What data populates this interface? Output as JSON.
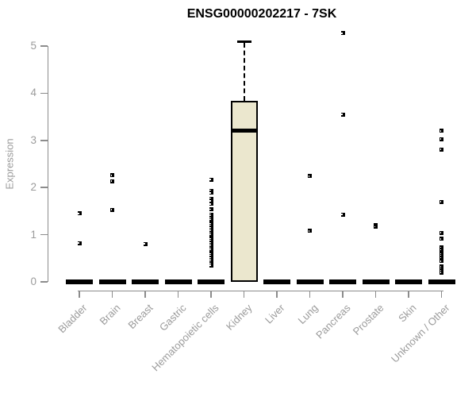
{
  "chart_data": {
    "type": "boxplot",
    "title": "ENSG00000202217 - 7SK",
    "ylabel": "Expression",
    "xlabel": "",
    "ylim": [
      0,
      5
    ],
    "yticks": [
      0,
      1,
      2,
      3,
      4,
      5
    ],
    "grid": false,
    "legend": "none",
    "axis_color": "#8c8c8c",
    "tick_label_color": "#9b9b9b",
    "point_color": "#000000",
    "box_fill_color": "#ebe7ce",
    "categories": [
      "Bladder",
      "Brain",
      "Breast",
      "Gastric",
      "Hematopoietic cells",
      "Kidney",
      "Liver",
      "Lung",
      "Pancreas",
      "Prostate",
      "Skin",
      "Unknown / Other"
    ],
    "series": [
      {
        "category": "Bladder",
        "median": 0,
        "outliers": [
          1.45,
          0.82
        ]
      },
      {
        "category": "Brain",
        "median": 0,
        "outliers": [
          2.26,
          2.13,
          1.53
        ]
      },
      {
        "category": "Breast",
        "median": 0,
        "outliers": [
          0.8
        ]
      },
      {
        "category": "Gastric",
        "median": 0,
        "outliers": []
      },
      {
        "category": "Hematopoietic cells",
        "median": 0,
        "outliers": [
          2.17,
          1.93,
          1.89,
          1.76,
          1.72,
          1.65,
          1.54,
          1.43,
          1.39,
          1.35,
          1.31,
          1.27,
          1.23,
          1.19,
          1.15,
          1.11,
          1.07,
          1.03,
          0.99,
          0.95,
          0.91,
          0.87,
          0.83,
          0.79,
          0.75,
          0.71,
          0.67,
          0.63,
          0.59,
          0.55,
          0.51,
          0.47,
          0.43,
          0.39,
          0.35
        ]
      },
      {
        "category": "Kidney",
        "box": {
          "q1": 0,
          "median": 3.2,
          "q3": 3.84,
          "whisker_low": 0,
          "whisker_high": 5.1
        },
        "outliers": []
      },
      {
        "category": "Liver",
        "median": 0,
        "outliers": []
      },
      {
        "category": "Lung",
        "median": 0,
        "outliers": [
          2.24,
          1.08
        ]
      },
      {
        "category": "Pancreas",
        "median": 0,
        "outliers": [
          5.27,
          3.55,
          1.43
        ]
      },
      {
        "category": "Prostate",
        "median": 0,
        "outliers": [
          1.2,
          1.17
        ]
      },
      {
        "category": "Skin",
        "median": 0,
        "outliers": []
      },
      {
        "category": "Unknown / Other",
        "median": 0,
        "outliers": [
          3.2,
          3.03,
          2.81,
          1.7,
          1.04,
          0.91,
          0.73,
          0.67,
          0.63,
          0.59,
          0.55,
          0.51,
          0.47,
          0.44,
          0.32,
          0.28,
          0.24,
          0.2
        ]
      }
    ]
  }
}
